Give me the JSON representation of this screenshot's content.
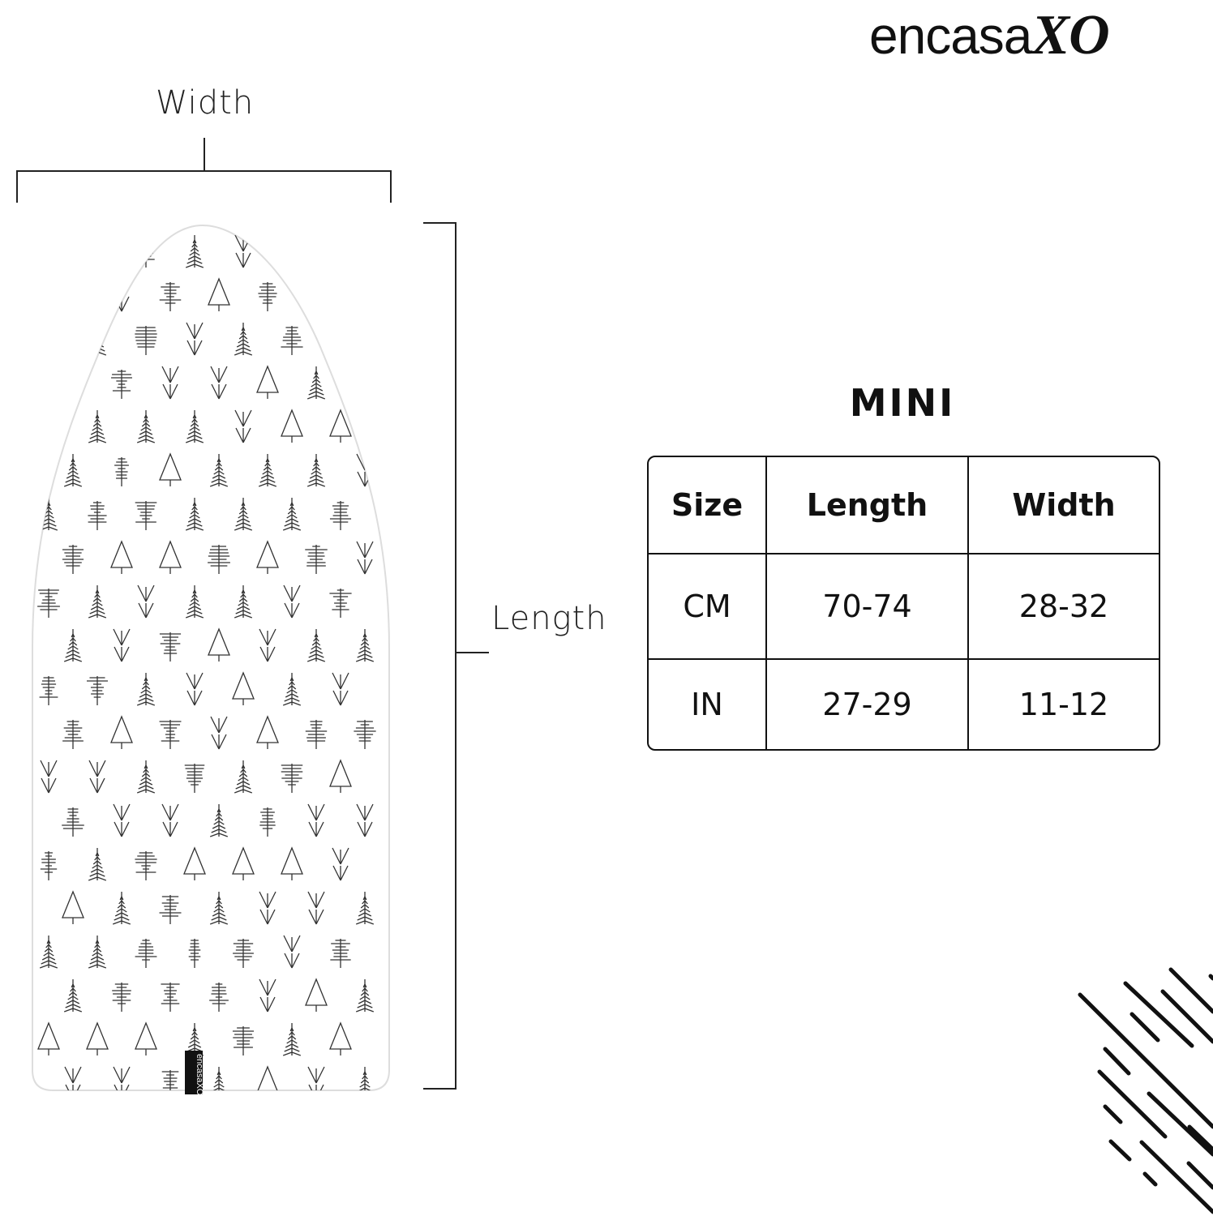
{
  "brand": {
    "name": "encasa",
    "suffix": "XO"
  },
  "dimensions": {
    "width_label": "Width",
    "length_label": "Length"
  },
  "board_tag": "encasaXO",
  "size_chart": {
    "title": "MINI",
    "headers": [
      "Size",
      "Length",
      "Width"
    ],
    "rows": [
      [
        "CM",
        "70-74",
        "28-32"
      ],
      [
        "IN",
        "27-29",
        "11-12"
      ]
    ]
  },
  "colors": {
    "ink": "#111111",
    "background": "#ffffff"
  }
}
